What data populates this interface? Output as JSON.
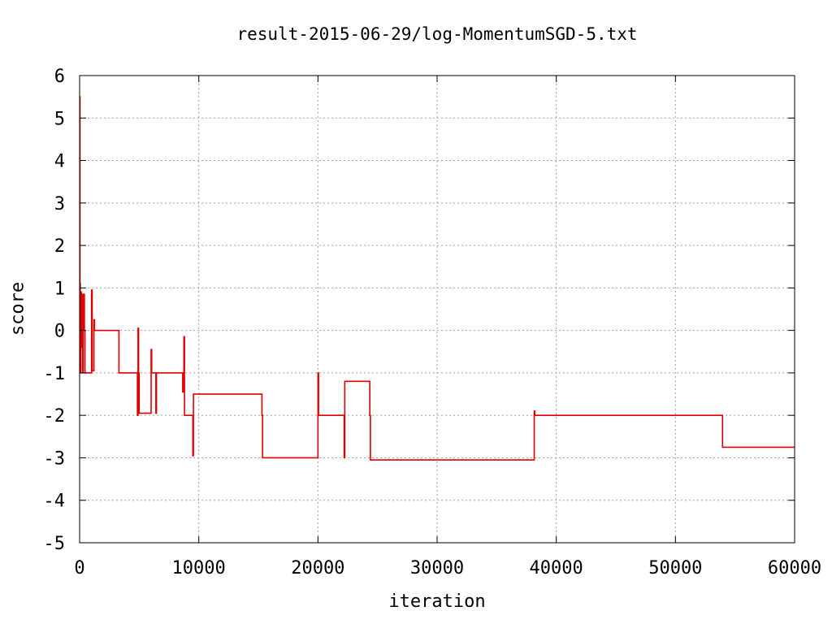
{
  "chart_data": {
    "type": "line",
    "title": "result-2015-06-29/log-MomentumSGD-5.txt",
    "xlabel": "iteration",
    "ylabel": "score",
    "xlim": [
      0,
      60000
    ],
    "ylim": [
      -5,
      6
    ],
    "xticks": [
      0,
      10000,
      20000,
      30000,
      40000,
      50000,
      60000
    ],
    "xtick_labels": [
      "0",
      "10000",
      "20000",
      "30000",
      "40000",
      "50000",
      "60000"
    ],
    "yticks": [
      -5,
      -4,
      -3,
      -2,
      -1,
      0,
      1,
      2,
      3,
      4,
      5,
      6
    ],
    "ytick_labels": [
      "-5",
      "-4",
      "-3",
      "-2",
      "-1",
      "0",
      "1",
      "2",
      "3",
      "4",
      "5",
      "6"
    ],
    "grid": true,
    "series_color": "#e00000",
    "series": [
      {
        "x": [
          0,
          30,
          30,
          60,
          60,
          100,
          100,
          150,
          150,
          200,
          200,
          250,
          250,
          300,
          300,
          400,
          400,
          450,
          450,
          1000,
          1000,
          1050,
          1050,
          1200,
          1200,
          1250,
          1250,
          3300,
          3300,
          4850,
          4850,
          4900,
          4900,
          4950,
          4950,
          5000,
          5000,
          6000,
          6000,
          6050,
          6050,
          6400,
          6400,
          6450,
          6450,
          8650,
          8650,
          8750,
          8750,
          8800,
          8800,
          9000,
          9000,
          9500,
          9500,
          9550,
          9550,
          15300,
          15300,
          15350,
          15350,
          20000,
          20000,
          20050,
          20050,
          22200,
          22200,
          22250,
          22250,
          24350,
          24350,
          24400,
          24400,
          38150,
          38150,
          38200,
          38200,
          53950,
          53950,
          60000
        ],
        "y": [
          5.5,
          5.5,
          1.1,
          1.1,
          -1,
          -1,
          0.9,
          0.9,
          -0.4,
          -0.4,
          0.85,
          0.85,
          -1,
          -1,
          0.85,
          0.85,
          0,
          0,
          -1,
          -1,
          0.95,
          0.95,
          -0.95,
          -0.95,
          0.25,
          0.25,
          0,
          0,
          -1,
          -1,
          -2,
          -2,
          0.05,
          0.05,
          -1,
          -1,
          -1.95,
          -1.95,
          -0.45,
          -0.45,
          -1,
          -1,
          -1.95,
          -1.95,
          -1,
          -1,
          -1.45,
          -1.45,
          -0.15,
          -0.15,
          -2,
          -2,
          -2,
          -2,
          -2.95,
          -2.95,
          -1.5,
          -1.5,
          -2,
          -2,
          -3,
          -3,
          -1,
          -1,
          -2,
          -2,
          -3,
          -3,
          -1.2,
          -1.2,
          -2,
          -2,
          -3.05,
          -3.05,
          -1.9,
          -1.9,
          -2,
          -2,
          -2.75,
          -2.75
        ]
      }
    ]
  }
}
